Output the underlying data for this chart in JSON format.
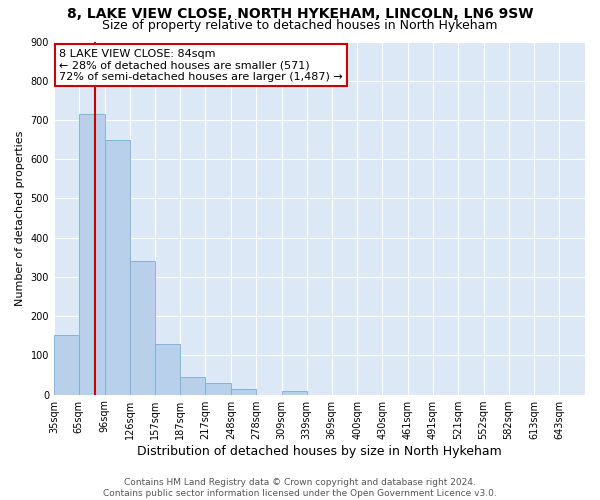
{
  "title": "8, LAKE VIEW CLOSE, NORTH HYKEHAM, LINCOLN, LN6 9SW",
  "subtitle": "Size of property relative to detached houses in North Hykeham",
  "xlabel": "Distribution of detached houses by size in North Hykeham",
  "ylabel": "Number of detached properties",
  "bar_values": [
    152,
    715,
    650,
    340,
    130,
    45,
    30,
    15,
    0,
    10,
    0,
    0,
    0,
    0,
    0,
    0,
    0,
    0,
    0,
    0
  ],
  "bin_labels": [
    "35sqm",
    "65sqm",
    "96sqm",
    "126sqm",
    "157sqm",
    "187sqm",
    "217sqm",
    "248sqm",
    "278sqm",
    "309sqm",
    "339sqm",
    "369sqm",
    "400sqm",
    "430sqm",
    "461sqm",
    "491sqm",
    "521sqm",
    "552sqm",
    "582sqm",
    "613sqm",
    "643sqm"
  ],
  "bin_edges": [
    35,
    65,
    96,
    126,
    157,
    187,
    217,
    248,
    278,
    309,
    339,
    369,
    400,
    430,
    461,
    491,
    521,
    552,
    582,
    613,
    643
  ],
  "bar_color": "#b8d0ea",
  "bar_edge_color": "#7aadd4",
  "vline_x": 84,
  "vline_color": "#cc0000",
  "annotation_line1": "8 LAKE VIEW CLOSE: 84sqm",
  "annotation_line2": "← 28% of detached houses are smaller (571)",
  "annotation_line3": "72% of semi-detached houses are larger (1,487) →",
  "annotation_box_color": "#cc0000",
  "annotation_box_facecolor": "white",
  "ylim": [
    0,
    900
  ],
  "yticks": [
    0,
    100,
    200,
    300,
    400,
    500,
    600,
    700,
    800,
    900
  ],
  "footnote_line1": "Contains HM Land Registry data © Crown copyright and database right 2024.",
  "footnote_line2": "Contains public sector information licensed under the Open Government Licence v3.0.",
  "fig_bg_color": "#ffffff",
  "plot_bg_color": "#dce8f5",
  "title_fontsize": 10,
  "subtitle_fontsize": 9,
  "xlabel_fontsize": 9,
  "ylabel_fontsize": 8,
  "tick_fontsize": 7,
  "footnote_fontsize": 6.5,
  "annotation_fontsize": 8
}
